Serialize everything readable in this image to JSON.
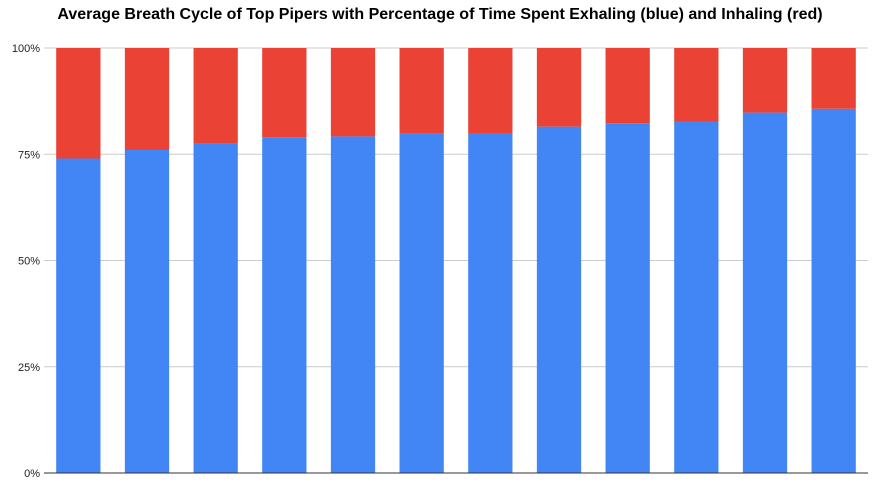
{
  "chart_data": {
    "type": "bar",
    "stacked": true,
    "title": "Average Breath Cycle of Top Pipers with Percentage of Time Spent Exhaling (blue) and Inhaling (red)",
    "xlabel": "",
    "ylabel": "",
    "ylim": [
      0,
      100
    ],
    "yticks": [
      "0%",
      "25%",
      "50%",
      "75%",
      "100%"
    ],
    "ytick_values": [
      0,
      25,
      50,
      75,
      100
    ],
    "grid": true,
    "legend": "none",
    "series": [
      {
        "color": "#4285f4",
        "values": [
          74,
          76,
          77.5,
          79,
          79.2,
          79.8,
          80,
          81.5,
          82.3,
          82.7,
          84.8,
          85.7
        ]
      },
      {
        "color": "#ea4335",
        "values": [
          26,
          24,
          22.5,
          21,
          20.8,
          20.2,
          20,
          18.5,
          17.7,
          17.3,
          15.2,
          14.3
        ]
      }
    ]
  }
}
